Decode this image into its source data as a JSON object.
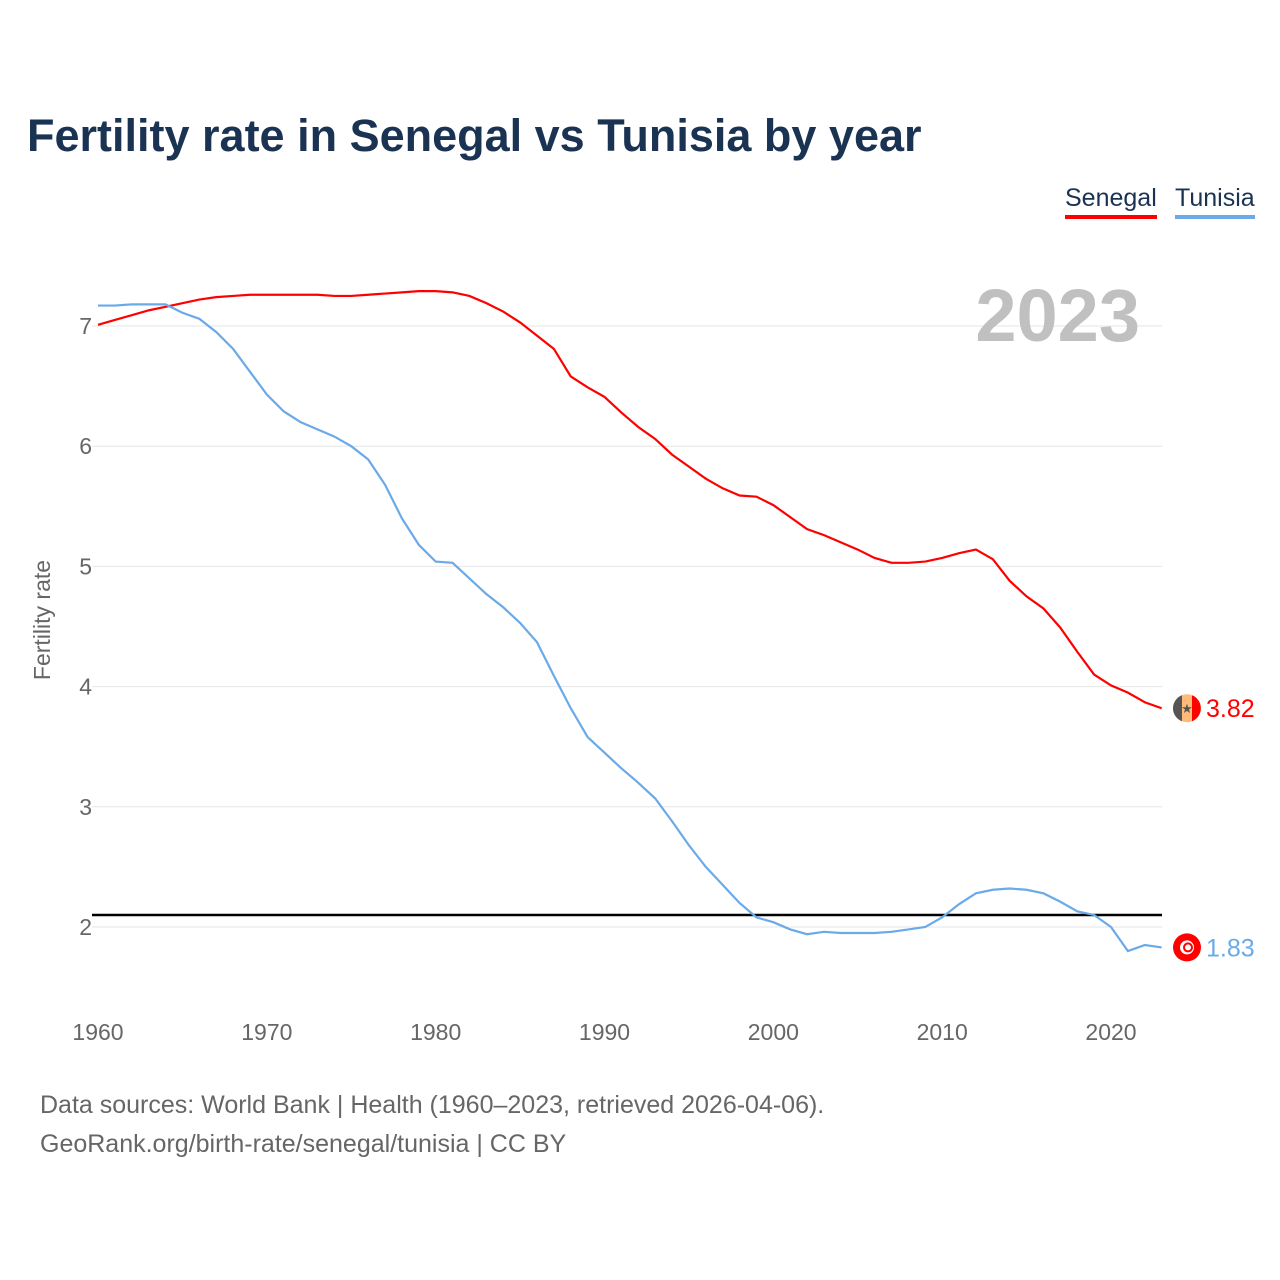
{
  "chart_data": {
    "type": "line",
    "title": "Fertility rate in Senegal vs Tunisia by year",
    "ylabel": "Fertility rate",
    "xlabel": "",
    "year_label": "2023",
    "xlim": [
      1960,
      2023
    ],
    "ylim": [
      1.4,
      7.5
    ],
    "xticks": [
      1960,
      1970,
      1980,
      1990,
      2000,
      2010,
      2020
    ],
    "yticks": [
      2,
      3,
      4,
      5,
      6,
      7
    ],
    "reference_line": 2.1,
    "grid": true,
    "legend_position": "top-right",
    "x": [
      1960,
      1961,
      1962,
      1963,
      1964,
      1965,
      1966,
      1967,
      1968,
      1969,
      1970,
      1971,
      1972,
      1973,
      1974,
      1975,
      1976,
      1977,
      1978,
      1979,
      1980,
      1981,
      1982,
      1983,
      1984,
      1985,
      1986,
      1987,
      1988,
      1989,
      1990,
      1991,
      1992,
      1993,
      1994,
      1995,
      1996,
      1997,
      1998,
      1999,
      2000,
      2001,
      2002,
      2003,
      2004,
      2005,
      2006,
      2007,
      2008,
      2009,
      2010,
      2011,
      2012,
      2013,
      2014,
      2015,
      2016,
      2017,
      2018,
      2019,
      2020,
      2021,
      2022,
      2023
    ],
    "series": [
      {
        "name": "Senegal",
        "color": "#ff0000",
        "end_label": "3.82",
        "flag": "senegal-flag",
        "values": [
          7.01,
          7.05,
          7.09,
          7.13,
          7.16,
          7.19,
          7.22,
          7.24,
          7.25,
          7.26,
          7.26,
          7.26,
          7.26,
          7.26,
          7.25,
          7.25,
          7.26,
          7.27,
          7.28,
          7.29,
          7.29,
          7.28,
          7.25,
          7.19,
          7.12,
          7.03,
          6.92,
          6.81,
          6.58,
          6.49,
          6.41,
          6.28,
          6.16,
          6.06,
          5.93,
          5.83,
          5.73,
          5.65,
          5.59,
          5.58,
          5.51,
          5.41,
          5.31,
          5.26,
          5.2,
          5.14,
          5.07,
          5.03,
          5.03,
          5.04,
          5.07,
          5.11,
          5.14,
          5.06,
          4.88,
          4.75,
          4.65,
          4.49,
          4.29,
          4.1,
          4.01,
          3.95,
          3.87,
          3.82
        ]
      },
      {
        "name": "Tunisia",
        "color": "#6aaae8",
        "end_label": "1.83",
        "flag": "tunisia-flag",
        "values": [
          7.17,
          7.17,
          7.18,
          7.18,
          7.18,
          7.11,
          7.06,
          6.95,
          6.81,
          6.62,
          6.43,
          6.29,
          6.2,
          6.14,
          6.08,
          6.0,
          5.89,
          5.68,
          5.4,
          5.18,
          5.04,
          5.03,
          4.9,
          4.77,
          4.66,
          4.53,
          4.37,
          4.09,
          3.82,
          3.58,
          3.45,
          3.32,
          3.2,
          3.07,
          2.88,
          2.68,
          2.5,
          2.35,
          2.2,
          2.08,
          2.04,
          1.98,
          1.94,
          1.96,
          1.95,
          1.95,
          1.95,
          1.96,
          1.98,
          2.0,
          2.08,
          2.19,
          2.28,
          2.31,
          2.32,
          2.31,
          2.28,
          2.21,
          2.13,
          2.1,
          2.0,
          1.8,
          1.85,
          1.83
        ]
      }
    ]
  },
  "footer": {
    "line1": "Data sources: World Bank | Health (1960–2023, retrieved 2026-04-06).",
    "line2": "GeoRank.org/birth-rate/senegal/tunisia | CC BY"
  }
}
